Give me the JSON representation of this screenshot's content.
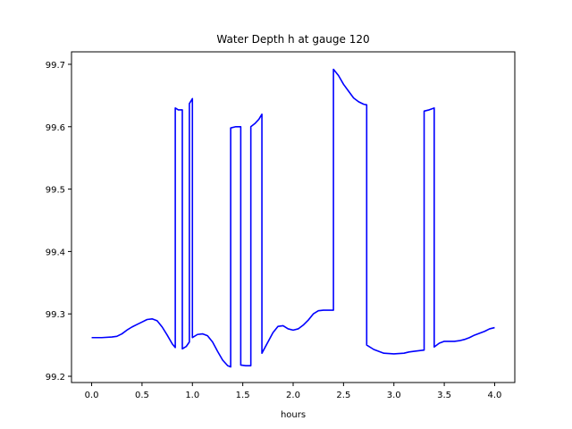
{
  "chart_data": {
    "type": "line",
    "title": "Water Depth h at gauge 120",
    "xlabel": "hours",
    "ylabel": "",
    "xlim": [
      -0.2,
      4.2
    ],
    "ylim": [
      99.19,
      99.72
    ],
    "xticks": [
      0.0,
      0.5,
      1.0,
      1.5,
      2.0,
      2.5,
      3.0,
      3.5,
      4.0
    ],
    "xtick_labels": [
      "0.0",
      "0.5",
      "1.0",
      "1.5",
      "2.0",
      "2.5",
      "3.0",
      "3.5",
      "4.0"
    ],
    "yticks": [
      99.2,
      99.3,
      99.4,
      99.5,
      99.6,
      99.7
    ],
    "ytick_labels": [
      "99.2",
      "99.3",
      "99.4",
      "99.5",
      "99.6",
      "99.7"
    ],
    "grid": false,
    "series": [
      {
        "name": "",
        "color": "#0000ff",
        "x": [
          0.0,
          0.1,
          0.2,
          0.25,
          0.3,
          0.35,
          0.4,
          0.45,
          0.5,
          0.55,
          0.6,
          0.65,
          0.7,
          0.75,
          0.8,
          0.83,
          0.83,
          0.86,
          0.9,
          0.9,
          0.94,
          0.97,
          0.97,
          1.0,
          1.0,
          1.05,
          1.1,
          1.15,
          1.2,
          1.25,
          1.3,
          1.35,
          1.38,
          1.38,
          1.43,
          1.48,
          1.48,
          1.53,
          1.58,
          1.58,
          1.62,
          1.66,
          1.69,
          1.69,
          1.75,
          1.8,
          1.85,
          1.9,
          1.95,
          2.0,
          2.05,
          2.1,
          2.15,
          2.2,
          2.25,
          2.3,
          2.35,
          2.4,
          2.4,
          2.45,
          2.5,
          2.55,
          2.6,
          2.65,
          2.7,
          2.73,
          2.73,
          2.8,
          2.9,
          3.0,
          3.1,
          3.15,
          3.2,
          3.3,
          3.3,
          3.35,
          3.4,
          3.4,
          3.45,
          3.5,
          3.55,
          3.6,
          3.65,
          3.7,
          3.75,
          3.8,
          3.85,
          3.9,
          3.95,
          4.0
        ],
        "y": [
          99.262,
          99.262,
          99.263,
          99.264,
          99.268,
          99.274,
          99.279,
          99.283,
          99.287,
          99.291,
          99.292,
          99.289,
          99.279,
          99.266,
          99.252,
          99.246,
          99.63,
          99.627,
          99.627,
          99.244,
          99.248,
          99.255,
          99.637,
          99.645,
          99.262,
          99.267,
          99.268,
          99.265,
          99.255,
          99.24,
          99.226,
          99.217,
          99.215,
          99.598,
          99.6,
          99.6,
          99.218,
          99.217,
          99.217,
          99.6,
          99.605,
          99.612,
          99.62,
          99.237,
          99.255,
          99.27,
          99.28,
          99.281,
          99.276,
          99.274,
          99.276,
          99.282,
          99.29,
          99.3,
          99.305,
          99.306,
          99.306,
          99.306,
          99.692,
          99.682,
          99.668,
          99.657,
          99.646,
          99.64,
          99.636,
          99.635,
          99.25,
          99.243,
          99.237,
          99.236,
          99.237,
          99.239,
          99.24,
          99.242,
          99.625,
          99.627,
          99.63,
          99.247,
          99.253,
          99.256,
          99.256,
          99.256,
          99.257,
          99.259,
          99.262,
          99.266,
          99.269,
          99.272,
          99.276,
          99.278
        ]
      }
    ]
  }
}
